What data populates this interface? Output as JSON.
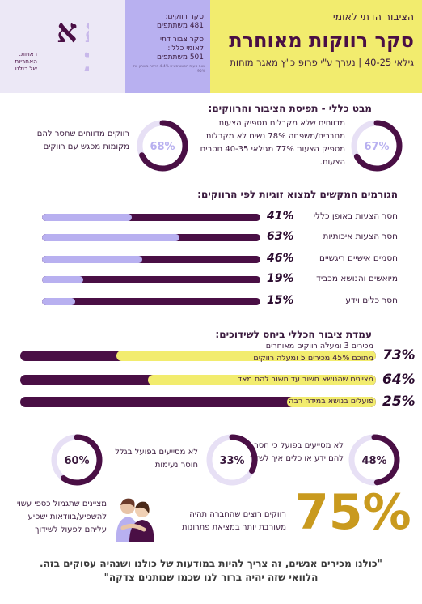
{
  "header": {
    "subtitle": "הציבור הדתי לאומי",
    "title": "סקר רווקות מאוחרת",
    "meta": "גילאי 40-25 | נערך ע\"י פרופ כ\"ץ מאגר מוחות",
    "stats": [
      "סקר רווקים:",
      "481 משתתפים",
      "סקר צבור דתי",
      "לאומי כללי:",
      "501 משתתפים"
    ],
    "note": "טווח טעות הסטטיסטית 4.4% ברמת ביטחון של 95%",
    "logo_text": "ראויות. האחריות של כולנו"
  },
  "overview": {
    "title": "מבט כללי - תפיסת הציבור והרווקים:",
    "left_ring_pct": "68%",
    "left_ring_value": 68,
    "left_text": "רווקים מדווחים שחסר להם מקומות מפגש עם רווקים",
    "right_ring_pct": "67%",
    "right_ring_value": 67,
    "right_text": "מדווחים שלא מקבלים מספיק הצעות מחברים/משפחה 78% נשים לא מקבלות מספיק הצעות 77% מגילאי 40-35 חסרים הצעות."
  },
  "factors": {
    "title": "הגורמים המקשים למצוא זוגיות לפי הרווקים:",
    "items": [
      {
        "label": "חסר הצעות באופן כללי",
        "pct": "41%",
        "value": 41
      },
      {
        "label": "חסר הצעות איכותיות",
        "pct": "63%",
        "value": 63
      },
      {
        "label": "חסמים אישיים ריגשיים",
        "pct": "46%",
        "value": 46
      },
      {
        "label": "מיואשים והנושא מכביד",
        "pct": "19%",
        "value": 19
      },
      {
        "label": "חסר כלים וידע",
        "pct": "15%",
        "value": 15
      }
    ]
  },
  "attitude": {
    "title": "עמדת ציבור הכללי ביחס לשידוכים:",
    "items": [
      {
        "label1": "מכירים 3 ומעלה רווקים מאוחרים",
        "label2": "מתוכם 45% מכירים 5 ומעלה רווקים",
        "pct": "73%",
        "value": 73
      },
      {
        "label1": "מציינים שהנושא חשוב עד חשוב להם מאד",
        "label2": "",
        "pct": "64%",
        "value": 64
      },
      {
        "label1": "פועלים בנושא במידה רבה",
        "label2": "",
        "pct": "25%",
        "value": 25
      }
    ]
  },
  "bottom_rings": [
    {
      "pct": "48%",
      "value": 48,
      "text": "לא מסייעים בפועל כי חסר להם ידע או כלים איך לשדך"
    },
    {
      "pct": "33%",
      "value": 33,
      "text": "לא מסייעים בפועל בגלל חוסר נעימות"
    },
    {
      "pct": "60%",
      "value": 60,
      "text": "מציינים שתגמול כספי עשוי להשפיע/בוודאות ישפיע עליהם לפעול לשידוך"
    }
  ],
  "big_stat": {
    "pct": "75%",
    "text": "רווקים רוצים שהחברה תהיה מעורבת יותר במציאת פתרונות"
  },
  "quote": {
    "line1": "\"כולנו מכירים אנשים, זה צריך להיות במודעות של כולנו ושנהיה עסוקים בזה.",
    "line2": "הלוואי שזה יהיה ברור לנו שכמו שנותנים צדקה\""
  },
  "colors": {
    "yellow": "#f2ec6e",
    "lavender": "#b8b0f0",
    "plum": "#4a0f45",
    "gold": "#c99a1e"
  }
}
